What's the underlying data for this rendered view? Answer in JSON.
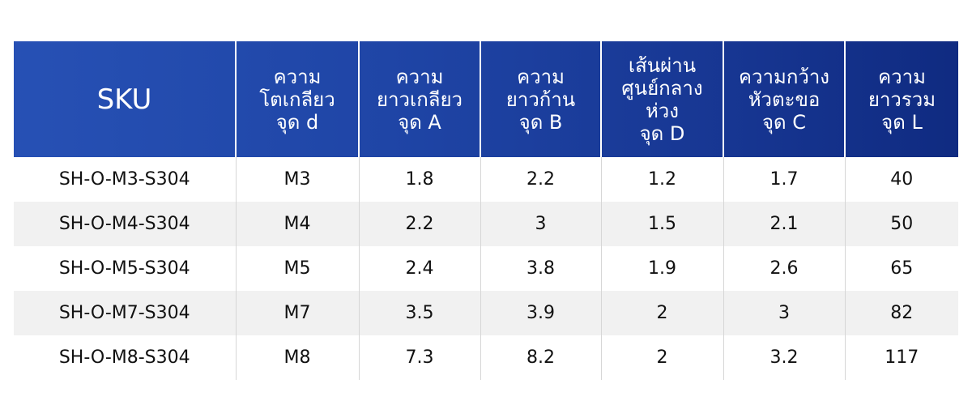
{
  "table": {
    "headers": [
      {
        "lines": [
          "SKU"
        ]
      },
      {
        "lines": [
          "ความ",
          "โตเกลียว",
          "จุด d"
        ]
      },
      {
        "lines": [
          "ความ",
          "ยาวเกลียว",
          "จุด A"
        ]
      },
      {
        "lines": [
          "ความ",
          "ยาวก้าน",
          "จุด B"
        ]
      },
      {
        "lines": [
          "เส้นผ่าน",
          "ศูนย์กลาง",
          "ห่วง",
          "จุด D"
        ]
      },
      {
        "lines": [
          "ความกว้าง",
          "หัวตะขอ",
          "จุด C"
        ]
      },
      {
        "lines": [
          "ความ",
          "ยาวรวม",
          "จุด L"
        ]
      }
    ],
    "rows": [
      [
        "SH-O-M3-S304",
        "M3",
        "1.8",
        "2.2",
        "1.2",
        "1.7",
        "40"
      ],
      [
        "SH-O-M4-S304",
        "M4",
        "2.2",
        "3",
        "1.5",
        "2.1",
        "50"
      ],
      [
        "SH-O-M5-S304",
        "M5",
        "2.4",
        "3.8",
        "1.9",
        "2.6",
        "65"
      ],
      [
        "SH-O-M7-S304",
        "M7",
        "3.5",
        "3.9",
        "2",
        "3",
        "82"
      ],
      [
        "SH-O-M8-S304",
        "M8",
        "7.3",
        "8.2",
        "2",
        "3.2",
        "117"
      ]
    ]
  },
  "colors": {
    "header_start": "#2751b5",
    "header_end": "#0f2a80",
    "header_text": "#ffffff",
    "row_alt": "#f1f1f1"
  }
}
